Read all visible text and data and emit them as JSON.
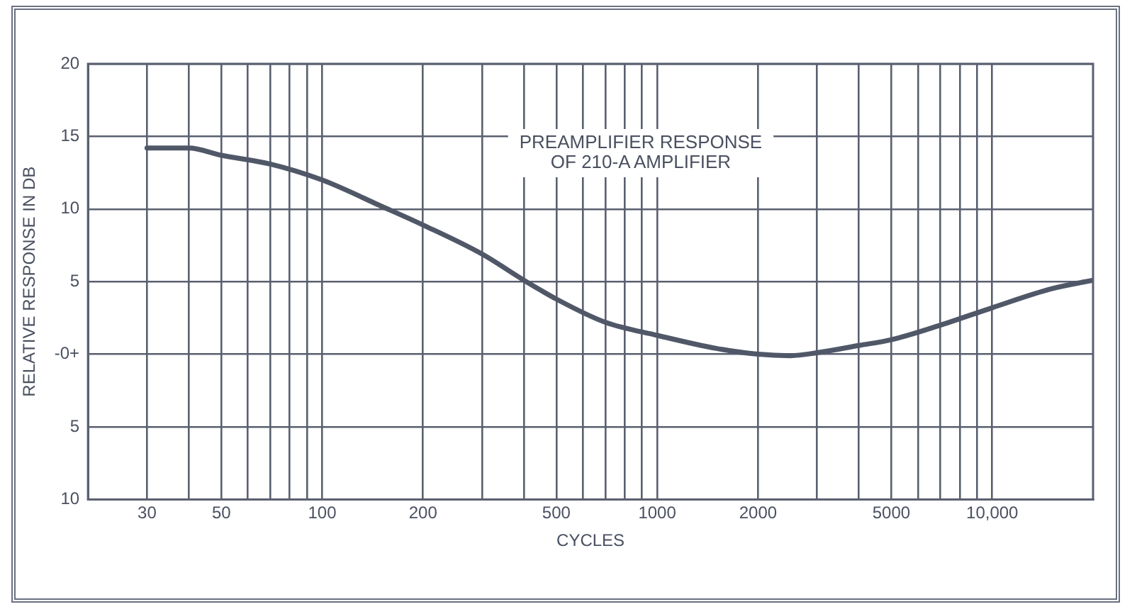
{
  "chart_data": {
    "type": "line",
    "xlabel": "CYCLES",
    "ylabel": "RELATIVE RESPONSE IN DB",
    "annotations": [
      "PREAMPLIFIER RESPONSE",
      "OF 210-A AMPLIFIER"
    ],
    "log": "x",
    "grid": true,
    "marker": "none",
    "line_style": "solid",
    "xlim": [
      20,
      20000
    ],
    "xticks": [
      30,
      {
        "value": 40,
        "label": null
      },
      50,
      {
        "value": 60,
        "label": null
      },
      {
        "value": 70,
        "label": null
      },
      {
        "value": 80,
        "label": null
      },
      {
        "value": 90,
        "label": null
      },
      100,
      200,
      {
        "value": 300,
        "label": null
      },
      {
        "value": 400,
        "label": null
      },
      500,
      {
        "value": 600,
        "label": null
      },
      {
        "value": 700,
        "label": null
      },
      {
        "value": 800,
        "label": null
      },
      {
        "value": 900,
        "label": null
      },
      1000,
      2000,
      {
        "value": 3000,
        "label": null
      },
      {
        "value": 4000,
        "label": null
      },
      5000,
      {
        "value": 6000,
        "label": null
      },
      {
        "value": 7000,
        "label": null
      },
      {
        "value": 8000,
        "label": null
      },
      {
        "value": 9000,
        "label": null
      },
      {
        "value": 10000,
        "label": "10,000"
      }
    ],
    "ylim": [
      -10,
      20
    ],
    "yticks": [
      {
        "value": -10,
        "label": "10"
      },
      {
        "value": -5,
        "label": "5"
      },
      {
        "value": 0,
        "label": "-0+"
      },
      5,
      10,
      15,
      20
    ],
    "x": [
      30,
      40,
      50,
      70,
      100,
      150,
      200,
      300,
      400,
      500,
      700,
      1000,
      1500,
      2000,
      2500,
      3000,
      4000,
      5000,
      7000,
      10000,
      15000,
      20000
    ],
    "series": [
      {
        "color": "#505868",
        "values": [
          14.2,
          14.2,
          13.7,
          13.1,
          12.0,
          10.2,
          8.9,
          6.9,
          5.1,
          3.8,
          2.2,
          1.3,
          0.4,
          0.0,
          -0.1,
          0.1,
          0.6,
          1.0,
          2.0,
          3.2,
          4.5,
          5.1
        ]
      }
    ]
  }
}
